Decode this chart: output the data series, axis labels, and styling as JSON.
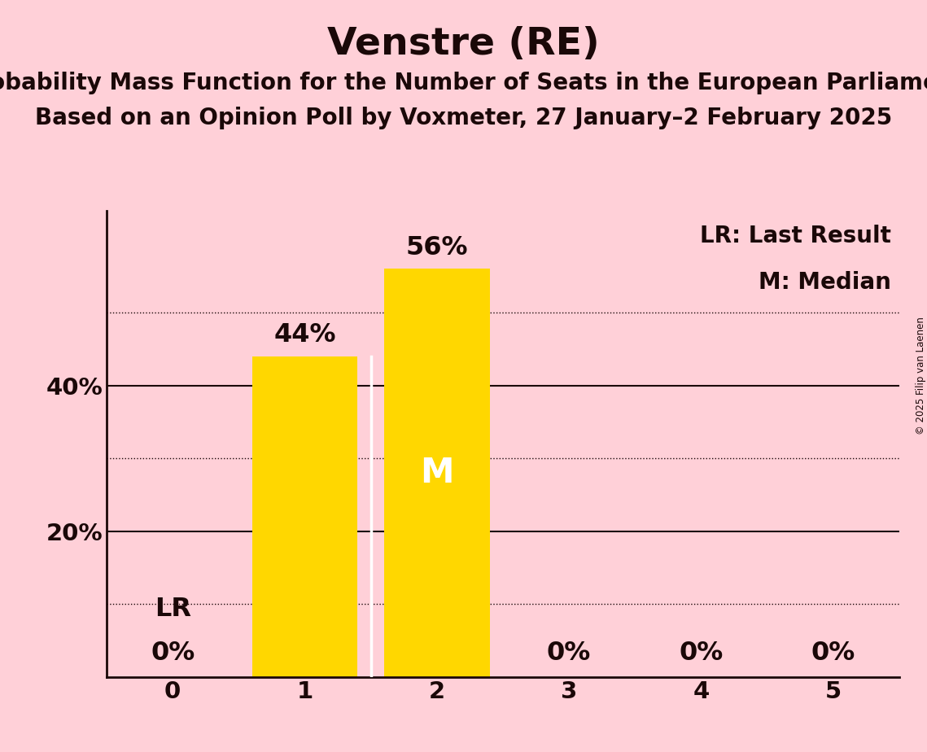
{
  "title": "Venstre (RE)",
  "subtitle1": "Probability Mass Function for the Number of Seats in the European Parliament",
  "subtitle2": "Based on an Opinion Poll by Voxmeter, 27 January–2 February 2025",
  "copyright": "© 2025 Filip van Laenen",
  "categories": [
    0,
    1,
    2,
    3,
    4,
    5
  ],
  "values": [
    0.0,
    0.44,
    0.56,
    0.0,
    0.0,
    0.0
  ],
  "bar_color": "#FFD700",
  "background_color": "#FFD0D8",
  "bar_labels": [
    "0%",
    "44%",
    "56%",
    "0%",
    "0%",
    "0%"
  ],
  "lr_bar": 0,
  "median_bar": 2,
  "legend_lr": "LR: Last Result",
  "legend_m": "M: Median",
  "solid_grid": [
    0.2,
    0.4
  ],
  "dotted_grid": [
    0.1,
    0.3,
    0.5
  ],
  "ytick_positions": [
    0.2,
    0.4
  ],
  "ytick_labels": [
    "20%",
    "40%"
  ],
  "ylim": [
    0,
    0.64
  ],
  "title_fontsize": 34,
  "subtitle_fontsize": 20,
  "bar_label_fontsize": 23,
  "axis_tick_fontsize": 21,
  "legend_fontsize": 20,
  "text_color": "#1a0808"
}
